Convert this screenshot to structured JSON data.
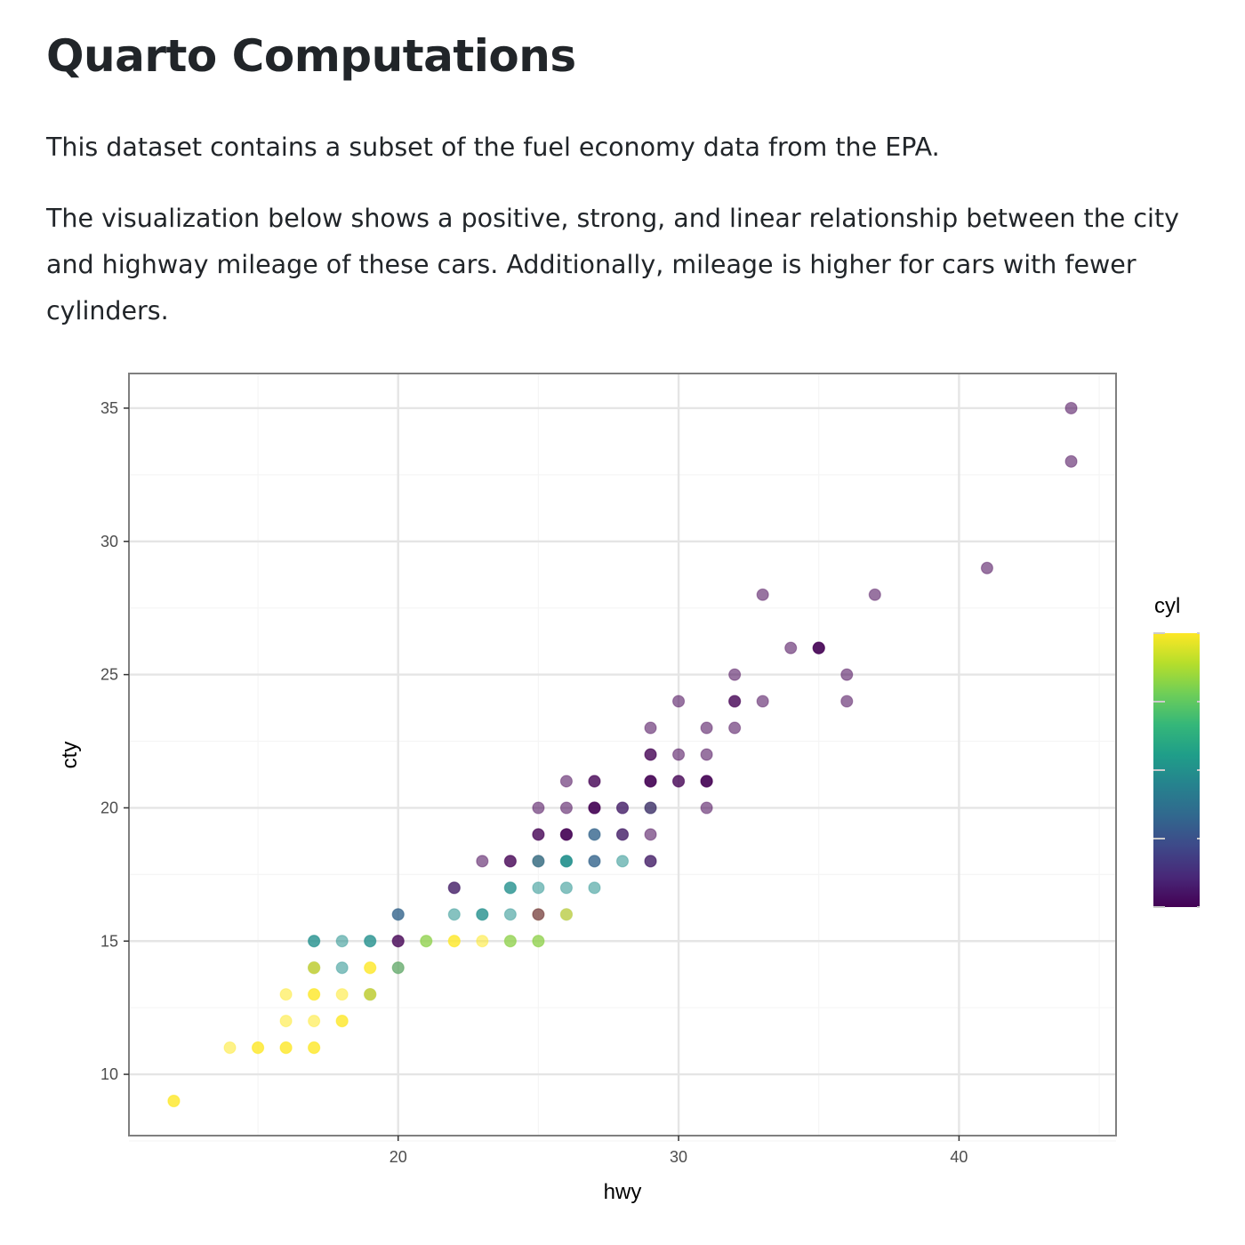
{
  "title": "Quarto Computations",
  "paragraphs": [
    "This dataset contains a subset of the fuel economy data from the EPA.",
    "The visualization below shows a positive, strong, and linear relationship between the city and highway mileage of these cars. Additionally, mileage is higher for cars with fewer cylinders."
  ],
  "chart_data": {
    "type": "scatter",
    "xlabel": "hwy",
    "ylabel": "cty",
    "xlim": [
      10.4,
      45.6
    ],
    "ylim": [
      7.7,
      36.3
    ],
    "x_ticks": [
      20,
      30,
      40
    ],
    "y_ticks": [
      10,
      15,
      20,
      25,
      30,
      35
    ],
    "grid": true,
    "legend": {
      "title": "cyl",
      "type": "colorbar",
      "range": [
        4,
        8
      ],
      "ticks": [
        4,
        5,
        6,
        7,
        8
      ],
      "palette": "viridis",
      "placement": "right"
    },
    "colors": [
      "#440154",
      "#482878",
      "#3e4989",
      "#31688e",
      "#26828e",
      "#1f9e89",
      "#35b779",
      "#6ece58",
      "#b5de2b",
      "#fde725"
    ],
    "point_fields": [
      "hwy",
      "cty",
      "cyl"
    ],
    "points": [
      [
        44,
        35,
        4
      ],
      [
        44,
        33,
        4
      ],
      [
        41,
        29,
        4
      ],
      [
        37,
        28,
        4
      ],
      [
        33,
        28,
        4
      ],
      [
        34,
        26,
        4
      ],
      [
        35,
        26,
        4
      ],
      [
        35,
        26,
        4
      ],
      [
        35,
        26,
        4
      ],
      [
        36,
        25,
        4
      ],
      [
        32,
        25,
        4
      ],
      [
        33,
        24,
        4
      ],
      [
        32,
        24,
        4
      ],
      [
        32,
        24,
        4
      ],
      [
        30,
        24,
        4
      ],
      [
        36,
        24,
        4
      ],
      [
        29,
        23,
        4
      ],
      [
        31,
        23,
        4
      ],
      [
        32,
        23,
        4
      ],
      [
        29,
        22,
        4
      ],
      [
        29,
        22,
        4
      ],
      [
        30,
        22,
        4
      ],
      [
        31,
        22,
        4
      ],
      [
        29,
        21,
        4
      ],
      [
        29,
        21,
        4
      ],
      [
        29,
        21,
        4
      ],
      [
        30,
        21,
        4
      ],
      [
        30,
        21,
        4
      ],
      [
        31,
        21,
        4
      ],
      [
        31,
        21,
        4
      ],
      [
        31,
        21,
        4
      ],
      [
        26,
        21,
        4
      ],
      [
        27,
        21,
        4
      ],
      [
        27,
        21,
        4
      ],
      [
        31,
        20,
        4
      ],
      [
        25,
        20,
        4
      ],
      [
        26,
        20,
        4
      ],
      [
        27,
        20,
        4
      ],
      [
        27,
        20,
        4
      ],
      [
        27,
        20,
        4
      ],
      [
        28,
        20,
        5
      ],
      [
        28,
        20,
        4
      ],
      [
        29,
        20,
        6
      ],
      [
        29,
        20,
        4
      ],
      [
        25,
        19,
        4
      ],
      [
        25,
        19,
        4
      ],
      [
        26,
        19,
        4
      ],
      [
        26,
        19,
        4
      ],
      [
        26,
        19,
        4
      ],
      [
        27,
        19,
        6
      ],
      [
        27,
        19,
        5
      ],
      [
        28,
        19,
        5
      ],
      [
        28,
        19,
        4
      ],
      [
        29,
        19,
        4
      ],
      [
        23,
        18,
        4
      ],
      [
        24,
        18,
        4
      ],
      [
        24,
        18,
        4
      ],
      [
        25,
        18,
        4
      ],
      [
        25,
        18,
        6
      ],
      [
        26,
        18,
        6
      ],
      [
        26,
        18,
        6
      ],
      [
        26,
        18,
        6
      ],
      [
        27,
        18,
        6
      ],
      [
        27,
        18,
        5
      ],
      [
        28,
        18,
        6
      ],
      [
        29,
        18,
        5
      ],
      [
        29,
        18,
        4
      ],
      [
        22,
        17,
        5
      ],
      [
        22,
        17,
        4
      ],
      [
        24,
        17,
        6
      ],
      [
        24,
        17,
        6
      ],
      [
        25,
        17,
        6
      ],
      [
        26,
        17,
        6
      ],
      [
        27,
        17,
        6
      ],
      [
        20,
        16,
        6
      ],
      [
        20,
        16,
        5
      ],
      [
        22,
        16,
        6
      ],
      [
        23,
        16,
        6
      ],
      [
        23,
        16,
        6
      ],
      [
        24,
        16,
        6
      ],
      [
        25,
        16,
        8
      ],
      [
        25,
        16,
        4
      ],
      [
        26,
        16,
        6
      ],
      [
        26,
        16,
        8
      ],
      [
        17,
        15,
        6
      ],
      [
        17,
        15,
        6
      ],
      [
        18,
        15,
        6
      ],
      [
        19,
        15,
        6
      ],
      [
        19,
        15,
        6
      ],
      [
        20,
        15,
        4
      ],
      [
        20,
        15,
        4
      ],
      [
        21,
        15,
        8
      ],
      [
        21,
        15,
        7
      ],
      [
        22,
        15,
        8
      ],
      [
        22,
        15,
        8
      ],
      [
        23,
        15,
        8
      ],
      [
        24,
        15,
        8
      ],
      [
        24,
        15,
        7
      ],
      [
        25,
        15,
        8
      ],
      [
        25,
        15,
        7
      ],
      [
        17,
        14,
        8
      ],
      [
        17,
        14,
        6
      ],
      [
        17,
        14,
        8
      ],
      [
        18,
        14,
        6
      ],
      [
        19,
        14,
        8
      ],
      [
        19,
        14,
        8
      ],
      [
        20,
        14,
        8
      ],
      [
        20,
        14,
        6
      ],
      [
        16,
        13,
        8
      ],
      [
        17,
        13,
        8
      ],
      [
        17,
        13,
        8
      ],
      [
        18,
        13,
        8
      ],
      [
        19,
        13,
        8
      ],
      [
        19,
        13,
        6
      ],
      [
        19,
        13,
        8
      ],
      [
        16,
        12,
        8
      ],
      [
        17,
        12,
        8
      ],
      [
        18,
        12,
        8
      ],
      [
        18,
        12,
        8
      ],
      [
        14,
        11,
        8
      ],
      [
        15,
        11,
        8
      ],
      [
        15,
        11,
        8
      ],
      [
        16,
        11,
        8
      ],
      [
        16,
        11,
        8
      ],
      [
        17,
        11,
        8
      ],
      [
        17,
        11,
        8
      ],
      [
        12,
        9,
        8
      ],
      [
        12,
        9,
        8
      ]
    ]
  }
}
